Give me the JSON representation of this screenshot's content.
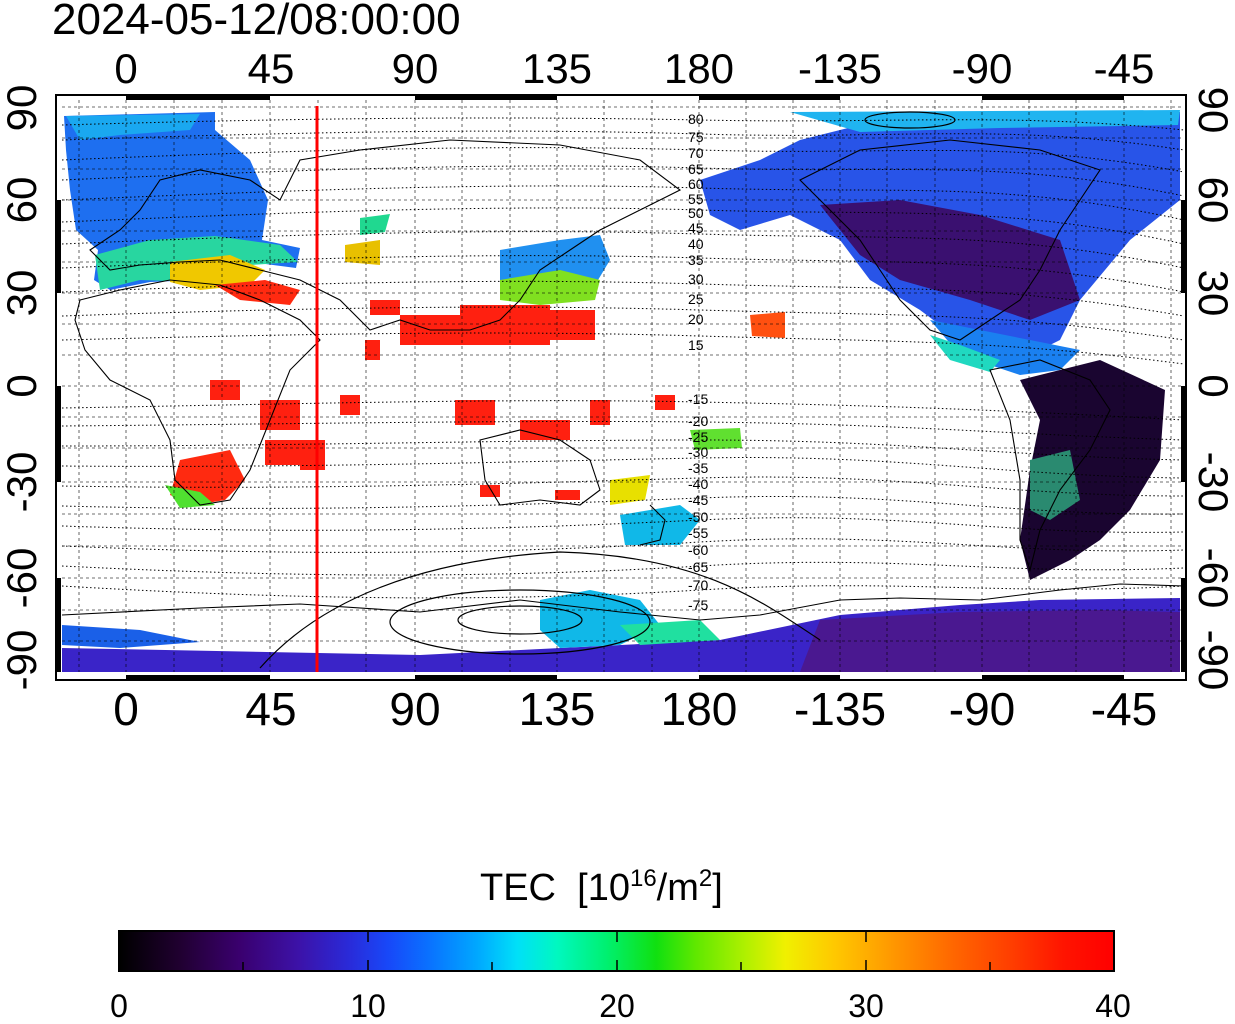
{
  "title": "2024-05-12/08:00:00",
  "axes": {
    "x_ticks": [
      "0",
      "45",
      "90",
      "135",
      "180",
      "-135",
      "-90",
      "-45"
    ],
    "y_ticks": [
      "90",
      "60",
      "30",
      "0",
      "-30",
      "-60",
      "-90"
    ]
  },
  "contour_labels": {
    "north": [
      "80",
      "75",
      "70",
      "65",
      "60",
      "55",
      "50",
      "45",
      "40",
      "35",
      "30",
      "25",
      "20",
      "15"
    ],
    "south": [
      "-15",
      "-20",
      "-25",
      "-30",
      "-35",
      "-40",
      "-45",
      "-50",
      "-55",
      "-60",
      "-65",
      "-70",
      "-75"
    ]
  },
  "marker": {
    "longitude": 60,
    "color": "#ff0000"
  },
  "colorbar": {
    "title": "TEC",
    "unit_base": "10",
    "unit_exp": "16",
    "unit_mid": "/m",
    "unit_exp2": "2",
    "unit_close": "]",
    "unit_open": "[",
    "ticks": [
      "0",
      "10",
      "20",
      "30",
      "40"
    ],
    "min": 0,
    "max": 40
  }
}
